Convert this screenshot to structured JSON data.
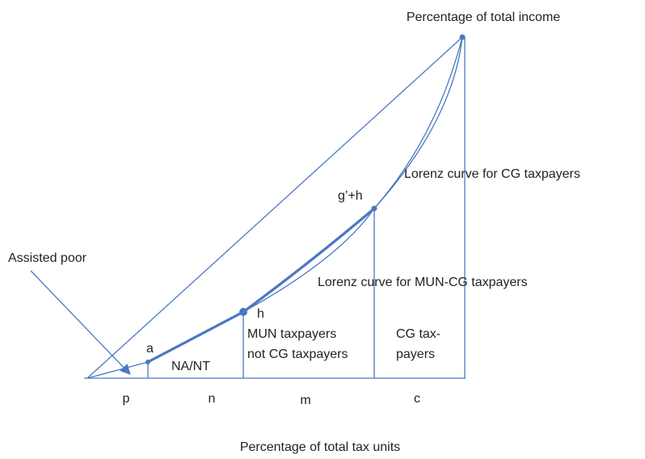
{
  "axes": {
    "y_label": "Percentage of total income",
    "x_label": "Percentage of total tax units"
  },
  "curves": {
    "cg": "Lorenz curve for CG taxpayers",
    "mun_cg": "Lorenz curve for MUN-CG taxpayers"
  },
  "points": {
    "a": "a",
    "h": "h",
    "gh": "g’+h"
  },
  "annotations": {
    "assisted_poor": "Assisted poor"
  },
  "regions": {
    "na_nt": "NA/NT",
    "mun_1": "MUN taxpayers",
    "mun_2": "not CG taxpayers",
    "cg_1": "CG tax-",
    "cg_2": "payers"
  },
  "segments": {
    "p": "p",
    "n": "n",
    "m": "m",
    "c": "c"
  }
}
